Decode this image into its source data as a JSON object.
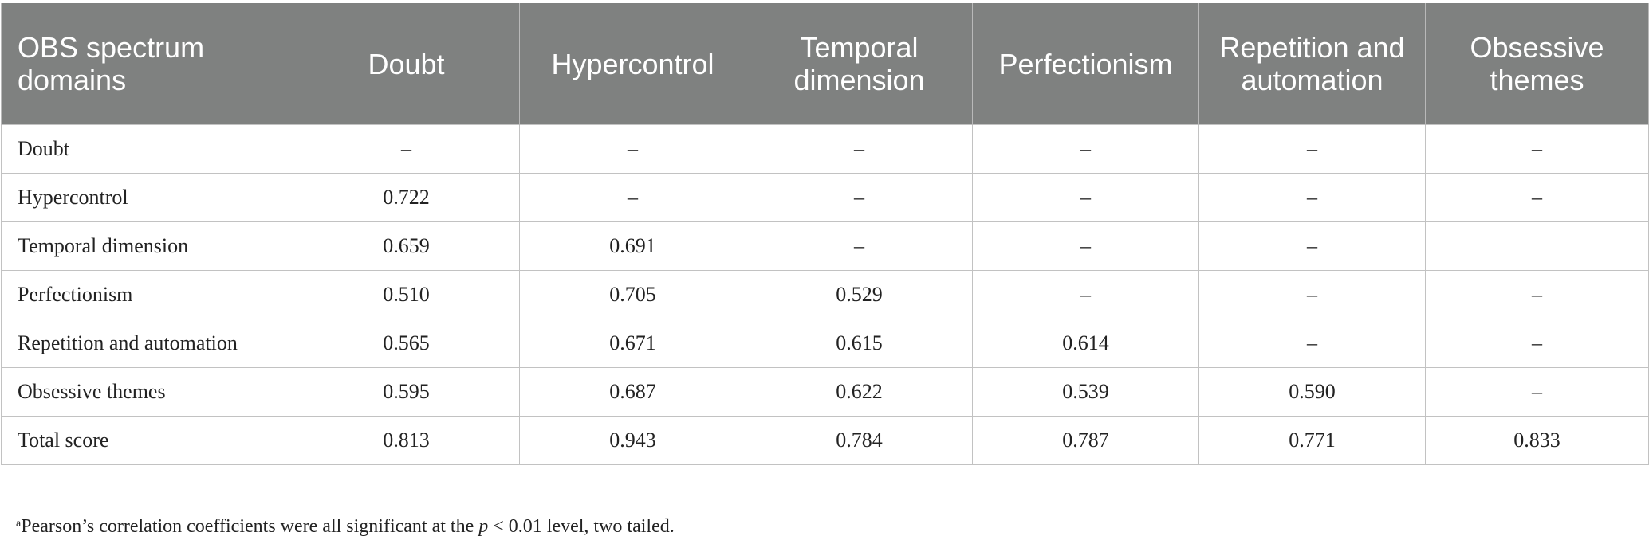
{
  "table": {
    "headers": [
      "OBS spectrum domains",
      "Doubt",
      "Hypercontrol",
      "Temporal dimension",
      "Perfectionism",
      "Repetition and automation",
      "Obsessive themes"
    ],
    "rows": [
      [
        "Doubt",
        "–",
        "–",
        "–",
        "–",
        "–",
        "–"
      ],
      [
        "Hypercontrol",
        "0.722",
        "–",
        "–",
        "–",
        "–",
        "–"
      ],
      [
        "Temporal dimension",
        "0.659",
        "0.691",
        "–",
        "–",
        "–",
        ""
      ],
      [
        "Perfectionism",
        "0.510",
        "0.705",
        "0.529",
        "–",
        "–",
        "–"
      ],
      [
        "Repetition and automation",
        "0.565",
        "0.671",
        "0.615",
        "0.614",
        "–",
        "–"
      ],
      [
        "Obsessive themes",
        "0.595",
        "0.687",
        "0.622",
        "0.539",
        "0.590",
        "–"
      ],
      [
        "Total score",
        "0.813",
        "0.943",
        "0.784",
        "0.787",
        "0.771",
        "0.833"
      ]
    ]
  },
  "footnote": {
    "marker": "a",
    "text_before": "Pearson’s correlation coefficients were all significant at the ",
    "p_symbol": "p",
    "text_after": " < 0.01 level, two tailed."
  }
}
